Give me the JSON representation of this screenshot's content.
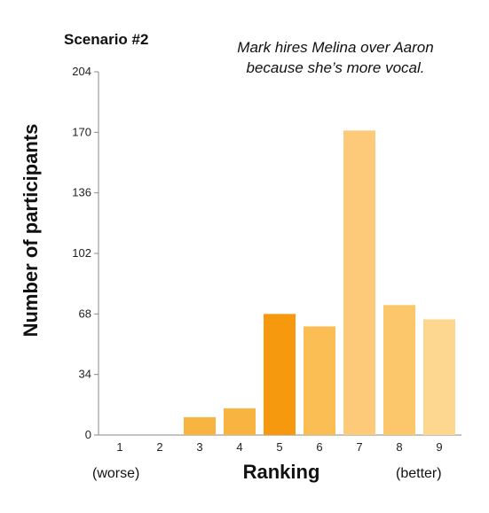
{
  "chart_data": {
    "type": "bar",
    "title": "Scenario #2",
    "subtitle": [
      "Mark hires Melina over Aaron",
      "because she’s more vocal."
    ],
    "xlabel": "Ranking",
    "ylabel": "Number of participants",
    "x_notes": {
      "left": "(worse)",
      "right": "(better)"
    },
    "categories": [
      "1",
      "2",
      "3",
      "4",
      "5",
      "6",
      "7",
      "8",
      "9"
    ],
    "values": [
      0,
      0,
      10,
      15,
      68,
      61,
      171,
      73,
      65
    ],
    "colors": [
      "#f5a623",
      "#f5a623",
      "#f8b440",
      "#f8b440",
      "#f7990f",
      "#fbbe55",
      "#fcca78",
      "#fcc76a",
      "#fdd68f"
    ],
    "yticks": [
      0,
      34,
      68,
      102,
      136,
      170,
      204
    ],
    "ylim": [
      0,
      204
    ],
    "grid": false,
    "legend": "none"
  }
}
